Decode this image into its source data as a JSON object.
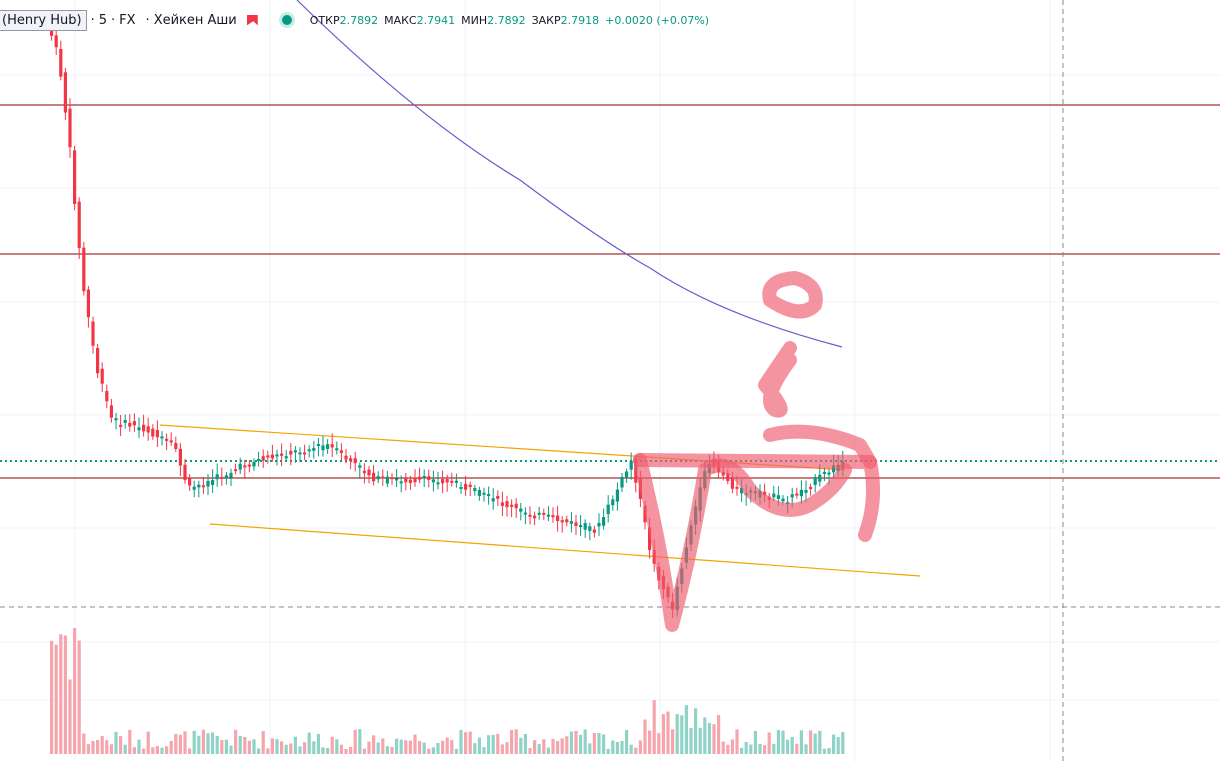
{
  "header": {
    "symbol": "(Henry Hub)",
    "interval": "5",
    "exchange": "FX",
    "chart_style": "Хейкен Аши",
    "open_label": "ОТКР",
    "open": "2.7892",
    "high_label": "МАКС",
    "high": "2.7941",
    "low_label": "МИН",
    "low": "2.7892",
    "close_label": "ЗАКР",
    "close": "2.7918",
    "change": "+0.0020 (+0.07%)"
  }
}
